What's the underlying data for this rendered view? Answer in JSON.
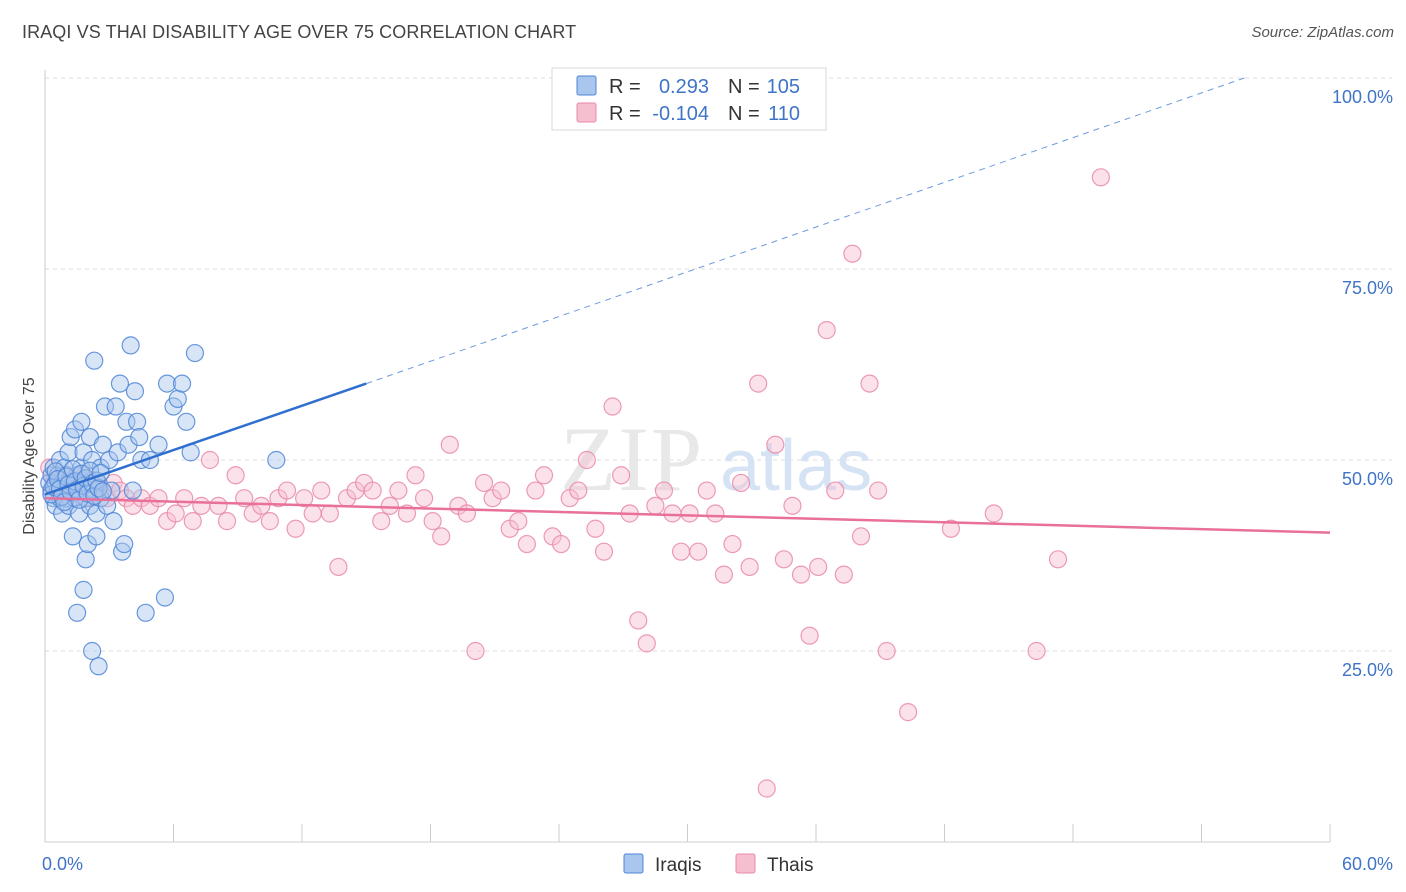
{
  "title": "IRAQI VS THAI DISABILITY AGE OVER 75 CORRELATION CHART",
  "source": "Source: ZipAtlas.com",
  "colors": {
    "iraqis_fill": "#a9c6ee",
    "iraqis_stroke": "#4f86d6",
    "iraqis_line": "#2f6fd0",
    "thais_fill": "#f6bfd0",
    "thais_stroke": "#e98aa8",
    "thais_line": "#e8709a",
    "tick_text": "#3f74c7"
  },
  "legend_top": {
    "rows": [
      {
        "r_label": "R =",
        "r_value": "0.293",
        "n_label": "N =",
        "n_value": "105"
      },
      {
        "r_label": "R =",
        "r_value": "-0.104",
        "n_label": "N =",
        "n_value": "110"
      }
    ]
  },
  "chart_data": {
    "type": "scatter",
    "title": "IRAQI VS THAI DISABILITY AGE OVER 75 CORRELATION CHART",
    "xlabel": "",
    "ylabel": "Disability Age Over 75",
    "xlim": [
      0,
      60
    ],
    "ylim": [
      0,
      105
    ],
    "x_tick_labels": {
      "min": "0.0%",
      "max": "60.0%"
    },
    "y_ticks": [
      {
        "value": 25,
        "label": "25.0%"
      },
      {
        "value": 50,
        "label": "50.0%"
      },
      {
        "value": 75,
        "label": "75.0%"
      },
      {
        "value": 100,
        "label": "100.0%"
      }
    ],
    "grid": true,
    "legend_position": "bottom",
    "series": [
      {
        "name": "Iraqis",
        "trend": {
          "x0": 0,
          "y0": 45.5,
          "x1": 15,
          "y1": 60,
          "dash_to": [
            56,
            100
          ]
        },
        "points": [
          [
            0.2,
            47
          ],
          [
            0.3,
            48
          ],
          [
            0.3,
            46
          ],
          [
            0.4,
            45
          ],
          [
            0.4,
            49
          ],
          [
            0.5,
            47
          ],
          [
            0.5,
            44
          ],
          [
            0.6,
            46
          ],
          [
            0.6,
            48
          ],
          [
            0.7,
            45
          ],
          [
            0.7,
            50
          ],
          [
            0.8,
            47
          ],
          [
            0.8,
            43
          ],
          [
            0.9,
            46
          ],
          [
            0.9,
            49
          ],
          [
            1.0,
            45
          ],
          [
            1.0,
            48
          ],
          [
            1.1,
            51
          ],
          [
            1.1,
            44
          ],
          [
            1.2,
            46
          ],
          [
            1.2,
            53
          ],
          [
            1.3,
            47
          ],
          [
            1.3,
            40
          ],
          [
            1.4,
            54
          ],
          [
            1.4,
            45
          ],
          [
            1.5,
            48
          ],
          [
            1.5,
            30
          ],
          [
            1.6,
            46
          ],
          [
            1.6,
            43
          ],
          [
            1.7,
            55
          ],
          [
            1.7,
            49
          ],
          [
            1.8,
            33
          ],
          [
            1.8,
            51
          ],
          [
            1.9,
            45
          ],
          [
            1.9,
            37
          ],
          [
            2.0,
            47
          ],
          [
            2.0,
            39
          ],
          [
            2.1,
            53
          ],
          [
            2.1,
            44
          ],
          [
            2.2,
            50
          ],
          [
            2.2,
            25
          ],
          [
            2.3,
            46
          ],
          [
            2.3,
            63
          ],
          [
            2.4,
            40
          ],
          [
            2.4,
            43
          ],
          [
            2.5,
            23
          ],
          [
            2.5,
            47
          ],
          [
            2.6,
            49
          ],
          [
            2.6,
            45
          ],
          [
            2.7,
            52
          ],
          [
            2.8,
            57
          ],
          [
            2.9,
            44
          ],
          [
            3.0,
            50
          ],
          [
            3.1,
            46
          ],
          [
            3.2,
            42
          ],
          [
            3.3,
            57
          ],
          [
            3.4,
            51
          ],
          [
            3.5,
            60
          ],
          [
            3.6,
            38
          ],
          [
            3.7,
            39
          ],
          [
            3.8,
            55
          ],
          [
            3.9,
            52
          ],
          [
            4.0,
            65
          ],
          [
            4.1,
            46
          ],
          [
            4.2,
            59
          ],
          [
            4.3,
            55
          ],
          [
            4.4,
            53
          ],
          [
            4.5,
            50
          ],
          [
            4.7,
            30
          ],
          [
            4.9,
            50
          ],
          [
            5.3,
            52
          ],
          [
            5.6,
            32
          ],
          [
            5.7,
            60
          ],
          [
            6.0,
            57
          ],
          [
            6.2,
            58
          ],
          [
            6.4,
            60
          ],
          [
            6.6,
            55
          ],
          [
            6.8,
            51
          ],
          [
            7.0,
            64
          ],
          [
            10.8,
            50
          ],
          [
            0.3,
            45.5
          ],
          [
            0.4,
            46.5
          ],
          [
            0.5,
            48.5
          ],
          [
            0.6,
            47.5
          ],
          [
            0.7,
            46.2
          ],
          [
            0.8,
            45.2
          ],
          [
            0.9,
            44.5
          ],
          [
            1.0,
            47.8
          ],
          [
            1.1,
            46.8
          ],
          [
            1.2,
            45.8
          ],
          [
            1.3,
            48.8
          ],
          [
            1.4,
            47.2
          ],
          [
            1.5,
            46.1
          ],
          [
            1.6,
            44.8
          ],
          [
            1.7,
            48.2
          ],
          [
            1.8,
            46.6
          ],
          [
            1.9,
            47.6
          ],
          [
            2.0,
            45.6
          ],
          [
            2.1,
            48.6
          ],
          [
            2.2,
            46.9
          ],
          [
            2.3,
            45.3
          ],
          [
            2.4,
            47.3
          ],
          [
            2.5,
            46.3
          ],
          [
            2.6,
            48.3
          ],
          [
            2.7,
            45.9
          ]
        ]
      },
      {
        "name": "Thais",
        "trend": {
          "x0": 0,
          "y0": 45,
          "x1": 60,
          "y1": 40.5
        },
        "points": [
          [
            0.2,
            49
          ],
          [
            0.4,
            47
          ],
          [
            0.6,
            48
          ],
          [
            0.8,
            46
          ],
          [
            1.0,
            45
          ],
          [
            1.2,
            47
          ],
          [
            1.5,
            46
          ],
          [
            1.8,
            48
          ],
          [
            2.0,
            45
          ],
          [
            2.3,
            47
          ],
          [
            2.6,
            46
          ],
          [
            2.9,
            45
          ],
          [
            3.2,
            47
          ],
          [
            3.5,
            46
          ],
          [
            3.8,
            45
          ],
          [
            4.1,
            44
          ],
          [
            4.5,
            45
          ],
          [
            4.9,
            44
          ],
          [
            5.3,
            45
          ],
          [
            5.7,
            42
          ],
          [
            6.1,
            43
          ],
          [
            6.5,
            45
          ],
          [
            6.9,
            42
          ],
          [
            7.3,
            44
          ],
          [
            7.7,
            50
          ],
          [
            8.1,
            44
          ],
          [
            8.5,
            42
          ],
          [
            8.9,
            48
          ],
          [
            9.3,
            45
          ],
          [
            9.7,
            43
          ],
          [
            10.1,
            44
          ],
          [
            10.5,
            42
          ],
          [
            10.9,
            45
          ],
          [
            11.3,
            46
          ],
          [
            11.7,
            41
          ],
          [
            12.1,
            45
          ],
          [
            12.5,
            43
          ],
          [
            12.9,
            46
          ],
          [
            13.3,
            43
          ],
          [
            13.7,
            36
          ],
          [
            14.1,
            45
          ],
          [
            14.5,
            46
          ],
          [
            14.9,
            47
          ],
          [
            15.3,
            46
          ],
          [
            15.7,
            42
          ],
          [
            16.1,
            44
          ],
          [
            16.5,
            46
          ],
          [
            16.9,
            43
          ],
          [
            17.3,
            48
          ],
          [
            17.7,
            45
          ],
          [
            18.1,
            42
          ],
          [
            18.5,
            40
          ],
          [
            18.9,
            52
          ],
          [
            19.3,
            44
          ],
          [
            19.7,
            43
          ],
          [
            20.1,
            25
          ],
          [
            20.5,
            47
          ],
          [
            20.9,
            45
          ],
          [
            21.3,
            46
          ],
          [
            21.7,
            41
          ],
          [
            22.1,
            42
          ],
          [
            22.5,
            39
          ],
          [
            22.9,
            46
          ],
          [
            23.3,
            48
          ],
          [
            23.7,
            40
          ],
          [
            24.1,
            39
          ],
          [
            24.5,
            45
          ],
          [
            24.9,
            46
          ],
          [
            25.3,
            50
          ],
          [
            25.7,
            41
          ],
          [
            26.1,
            38
          ],
          [
            26.5,
            57
          ],
          [
            26.9,
            48
          ],
          [
            27.3,
            43
          ],
          [
            27.7,
            29
          ],
          [
            28.1,
            26
          ],
          [
            28.5,
            44
          ],
          [
            28.9,
            46
          ],
          [
            29.3,
            43
          ],
          [
            29.7,
            38
          ],
          [
            30.1,
            43
          ],
          [
            30.5,
            38
          ],
          [
            30.9,
            46
          ],
          [
            31.3,
            43
          ],
          [
            31.7,
            35
          ],
          [
            32.1,
            39
          ],
          [
            32.5,
            47
          ],
          [
            32.9,
            36
          ],
          [
            33.3,
            60
          ],
          [
            33.7,
            7
          ],
          [
            34.1,
            52
          ],
          [
            34.5,
            37
          ],
          [
            34.9,
            44
          ],
          [
            35.3,
            35
          ],
          [
            35.7,
            27
          ],
          [
            36.1,
            36
          ],
          [
            36.5,
            67
          ],
          [
            36.9,
            46
          ],
          [
            37.3,
            35
          ],
          [
            37.7,
            77
          ],
          [
            38.1,
            40
          ],
          [
            38.5,
            60
          ],
          [
            38.9,
            46
          ],
          [
            39.3,
            25
          ],
          [
            40.3,
            17
          ],
          [
            42.3,
            41
          ],
          [
            44.3,
            43
          ],
          [
            46.3,
            25
          ],
          [
            47.3,
            37
          ],
          [
            49.3,
            87
          ]
        ]
      }
    ]
  },
  "legend_bottom": {
    "items": [
      {
        "label": "Iraqis"
      },
      {
        "label": "Thais"
      }
    ]
  }
}
